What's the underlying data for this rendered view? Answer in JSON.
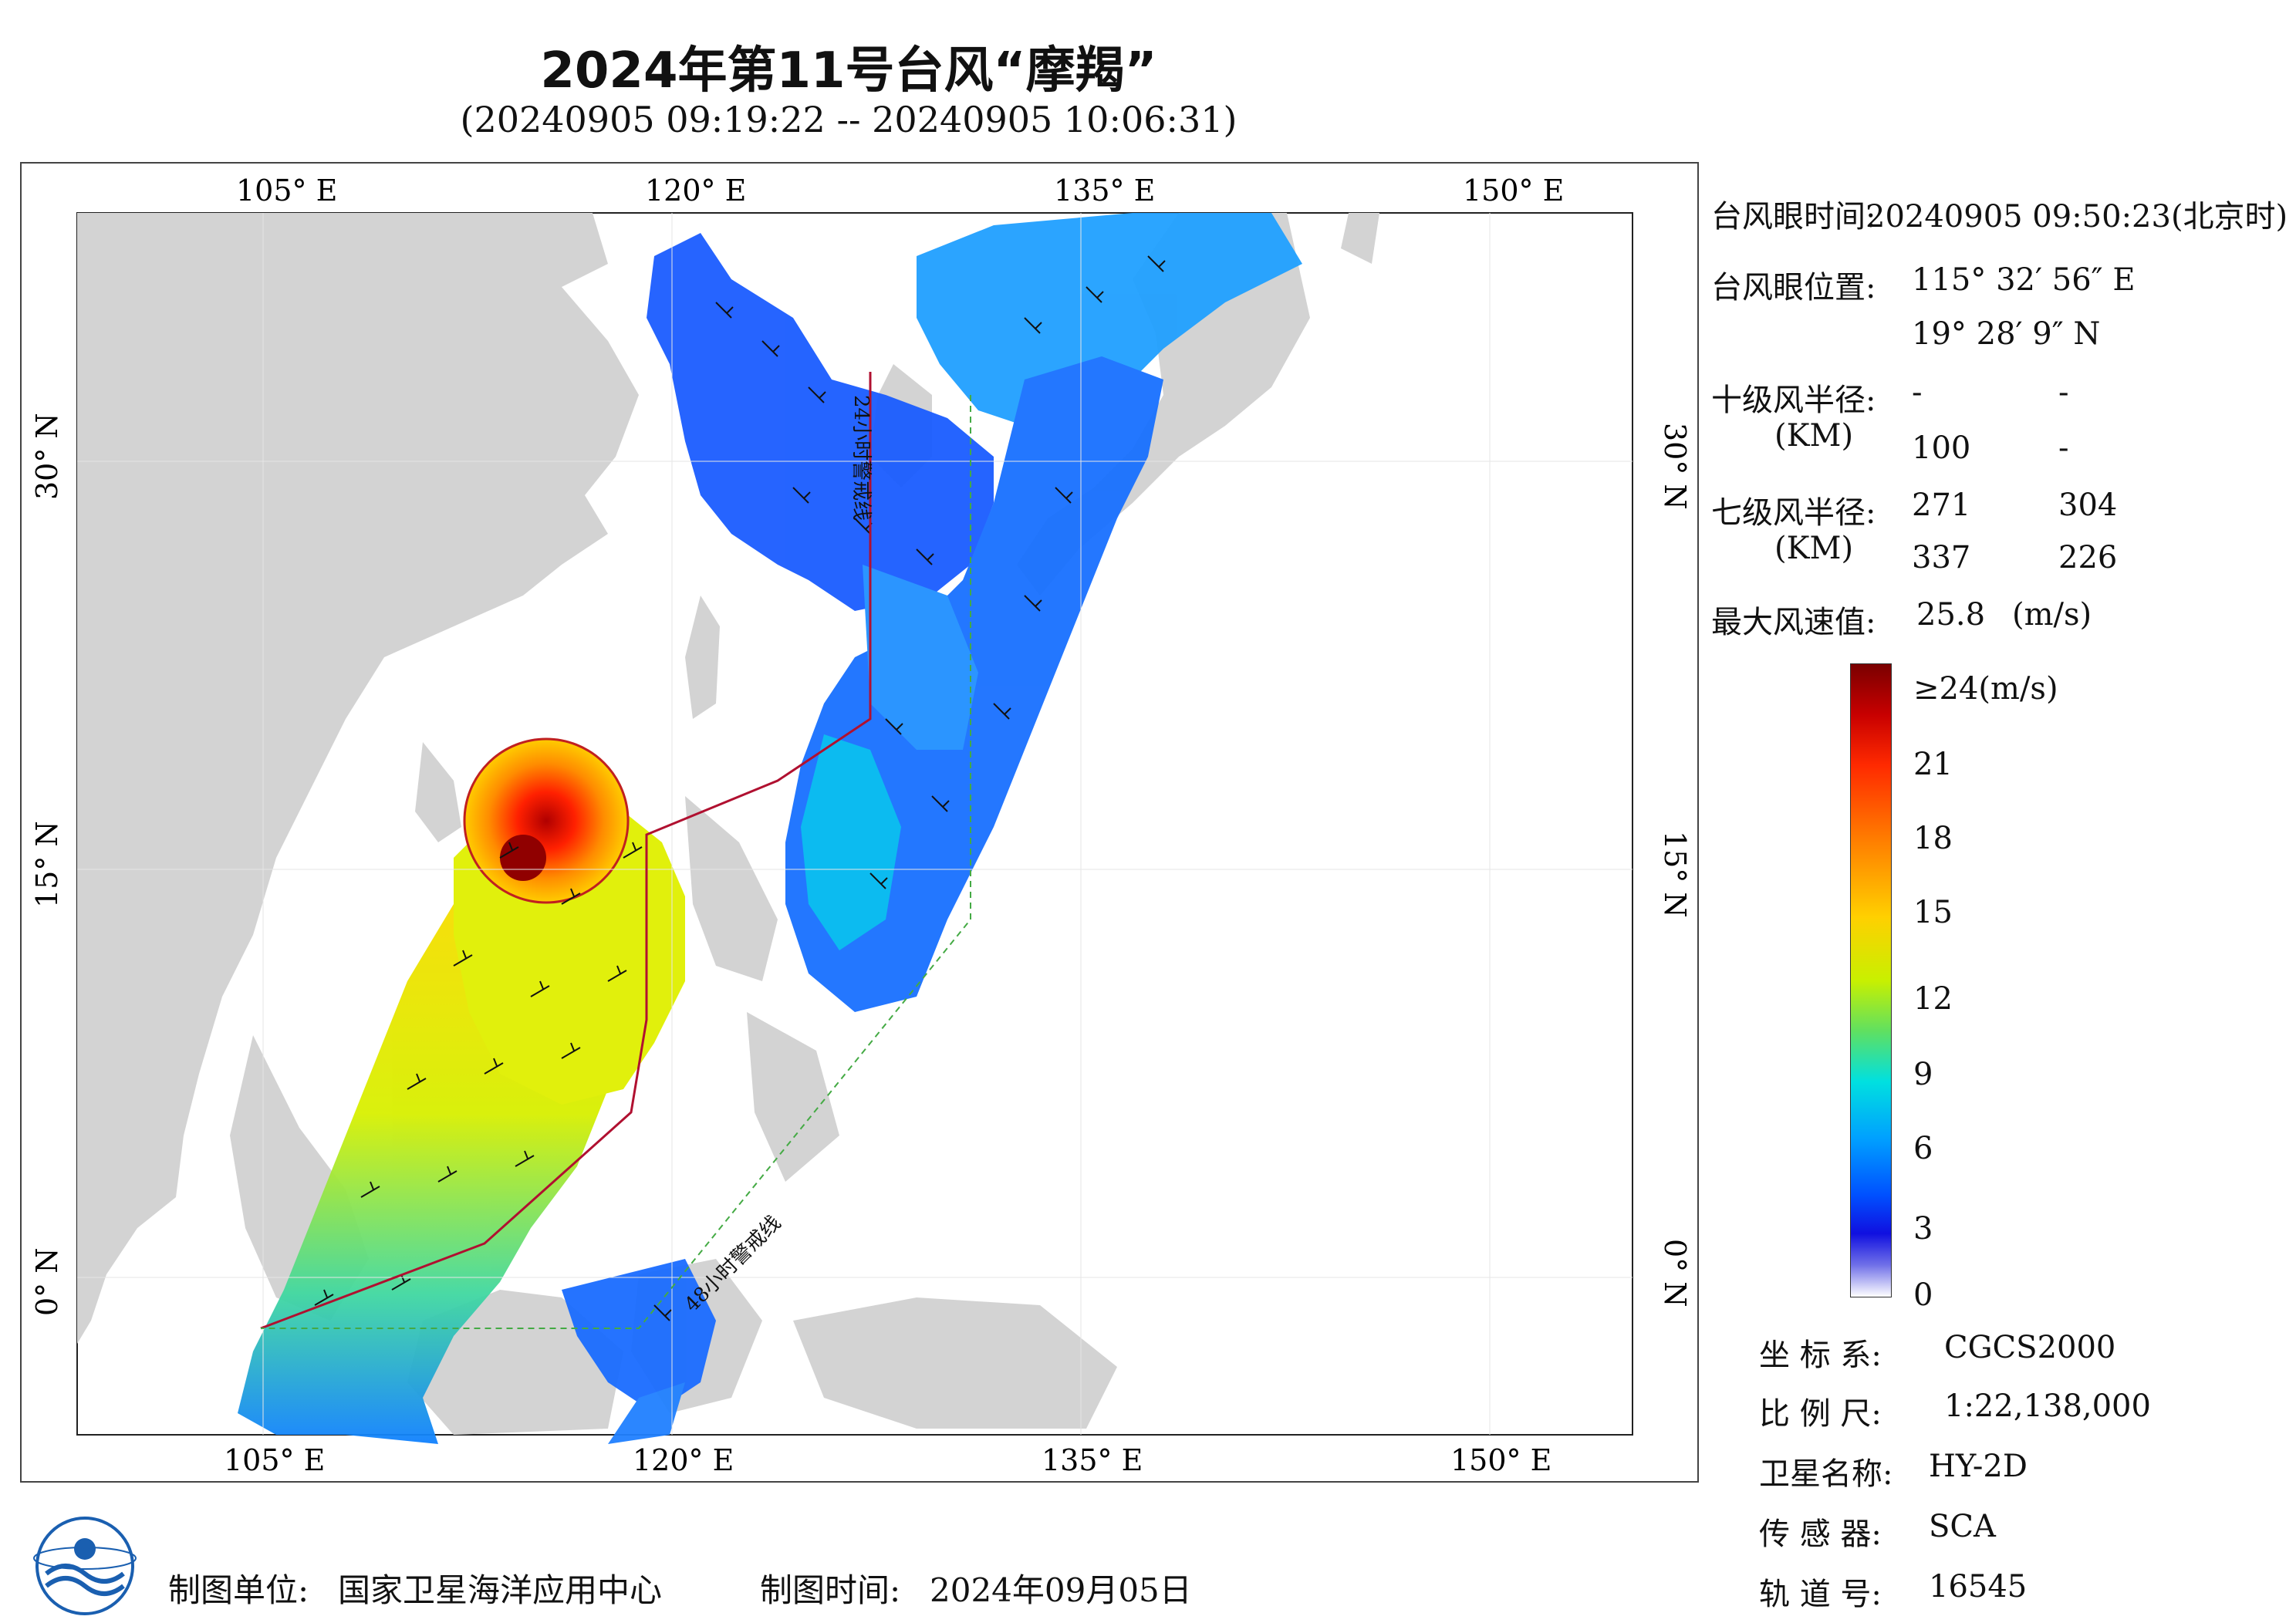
{
  "title": "2024年第11号台风“摩羯”",
  "subtitle": "(20240905 09:19:22 -- 20240905 10:06:31)",
  "map": {
    "top_axis_labels": [
      "105° E",
      "120° E",
      "135° E",
      "150° E"
    ],
    "bottom_axis_labels": [
      "105° E",
      "120° E",
      "135° E",
      "150° E"
    ],
    "left_axis_labels": [
      "30° N",
      "15° N",
      "0° N"
    ],
    "right_axis_labels": [
      "30° N",
      "15° N",
      "0° N"
    ],
    "line_24h": "24小时警戒线",
    "line_48h": "48小时警戒线",
    "colors": {
      "land": "#d3d3d3",
      "sea": "#ffffff",
      "warning_24h": "#b01030",
      "warning_48h": "#44aa44",
      "typhoon_circle": "#c02020"
    }
  },
  "info": {
    "eye_time_label": "台风眼时间:",
    "eye_time_value": "20240905 09:50:23(北京时)",
    "eye_pos_label": "台风眼位置:",
    "eye_lon": "115° 32′ 56″ E",
    "eye_lat": "19° 28′ 9″ N",
    "r10_label": "十级风半径:",
    "r10_unit": "(KM)",
    "r10_values": [
      "-",
      "-",
      "100",
      "-"
    ],
    "r7_label": "七级风半径:",
    "r7_unit": "(KM)",
    "r7_values": [
      "271",
      "304",
      "337",
      "226"
    ],
    "max_wind_label": "最大风速值:",
    "max_wind_value": "25.8",
    "max_wind_unit": "(m/s)"
  },
  "legend": {
    "top_label": "≥24(m/s)",
    "ticks": [
      "21",
      "18",
      "15",
      "12",
      "9",
      "6",
      "3",
      "0"
    ]
  },
  "meta": {
    "crs_label": "坐 标 系:",
    "crs_value": "CGCS2000",
    "scale_label": "比 例 尺:",
    "scale_value": "1:22,138,000",
    "sat_label": "卫星名称:",
    "sat_value": "HY-2D",
    "sensor_label": "传 感 器:",
    "sensor_value": "SCA",
    "orbit_label": "轨 道 号:",
    "orbit_value": "16545"
  },
  "footer": {
    "unit_label": "制图单位:",
    "unit_value": "国家卫星海洋应用中心",
    "time_label": "制图时间:",
    "time_value": "2024年09月05日"
  }
}
